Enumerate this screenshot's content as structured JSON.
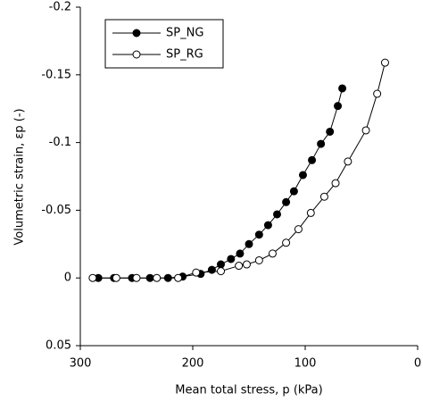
{
  "chart_data": {
    "type": "line",
    "xlabel": "Mean total stress, p (kPa)",
    "ylabel": "Volumetric strain, εp (-)",
    "xlim": [
      300,
      0
    ],
    "xticks": [
      300,
      200,
      100,
      0
    ],
    "ylim": [
      -0.2,
      0.05
    ],
    "yticks": [
      -0.2,
      -0.15,
      -0.1,
      -0.05,
      0,
      0.05
    ],
    "legend": "upper left",
    "series": [
      {
        "name": "SP_NG",
        "color": "#000000",
        "marker": "filled",
        "x": [
          284,
          270,
          254,
          238,
          222,
          209,
          193,
          183,
          175,
          166,
          158,
          150,
          141,
          133,
          125,
          117,
          110,
          102,
          94,
          86,
          78,
          71,
          67
        ],
        "values": [
          0,
          0,
          0,
          0,
          0,
          -0.001,
          -0.003,
          -0.006,
          -0.01,
          -0.014,
          -0.018,
          -0.025,
          -0.032,
          -0.039,
          -0.047,
          -0.056,
          -0.064,
          -0.076,
          -0.087,
          -0.099,
          -0.108,
          -0.127,
          -0.14
        ]
      },
      {
        "name": "SP_RG",
        "color": "#000000",
        "marker": "open",
        "x": [
          289,
          268,
          250,
          232,
          213,
          197,
          175,
          159,
          152,
          141,
          129,
          117,
          106,
          95,
          83,
          73,
          62,
          46,
          36,
          29
        ],
        "values": [
          0,
          0,
          0,
          0,
          0,
          -0.004,
          -0.005,
          -0.009,
          -0.01,
          -0.013,
          -0.018,
          -0.026,
          -0.036,
          -0.048,
          -0.06,
          -0.07,
          -0.086,
          -0.109,
          -0.136,
          -0.159
        ]
      }
    ]
  }
}
